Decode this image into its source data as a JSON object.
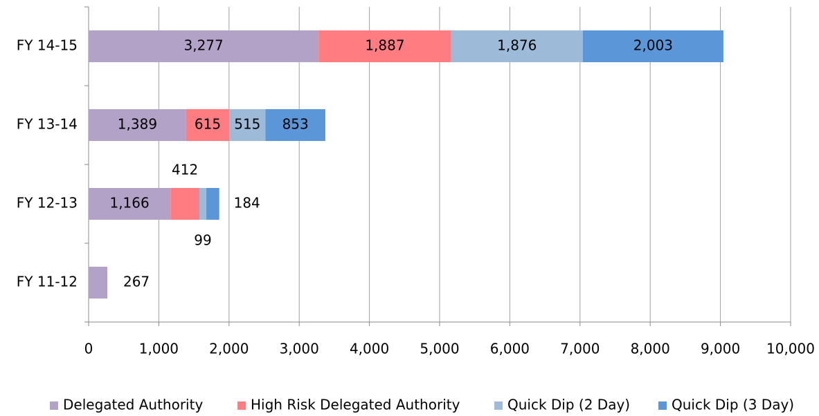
{
  "chart_data": {
    "type": "stacked-barh",
    "categories": [
      "FY 11-12",
      "FY 12-13",
      "FY 13-14",
      "FY 14-15"
    ],
    "series": [
      {
        "name": "Delegated Authority",
        "color": "#b3a2c7",
        "values": [
          267,
          1166,
          1389,
          3277
        ],
        "value_labels": [
          "267",
          "1,166",
          "1,389",
          "3,277"
        ]
      },
      {
        "name": "High Risk Delegated Authority",
        "color": "#ff7c80",
        "values": [
          null,
          412,
          615,
          1887
        ],
        "value_labels": [
          null,
          "412",
          "615",
          "1,887"
        ]
      },
      {
        "name": "Quick Dip (2 Day)",
        "color": "#9dbbd9",
        "values": [
          null,
          99,
          515,
          1876
        ],
        "value_labels": [
          null,
          "99",
          "515",
          "1,876"
        ]
      },
      {
        "name": "Quick Dip (3 Day)",
        "color": "#5b96d8",
        "values": [
          null,
          184,
          853,
          2003
        ],
        "value_labels": [
          null,
          "184",
          "853",
          "2,003"
        ]
      }
    ],
    "xlim": [
      0,
      10000
    ],
    "xticks": [
      0,
      {
        "value": 1000,
        "label": "1,000"
      },
      {
        "value": 2000,
        "label": "2,000"
      },
      {
        "value": 3000,
        "label": "3,000"
      },
      {
        "value": 4000,
        "label": "4,000"
      },
      {
        "value": 5000,
        "label": "5,000"
      },
      {
        "value": 6000,
        "label": "6,000"
      },
      {
        "value": 7000,
        "label": "7,000"
      },
      {
        "value": 8000,
        "label": "8,000"
      },
      {
        "value": 9000,
        "label": "9,000"
      },
      {
        "value": 10000,
        "label": "10,000"
      }
    ],
    "grid": true,
    "legend": "bottom"
  }
}
